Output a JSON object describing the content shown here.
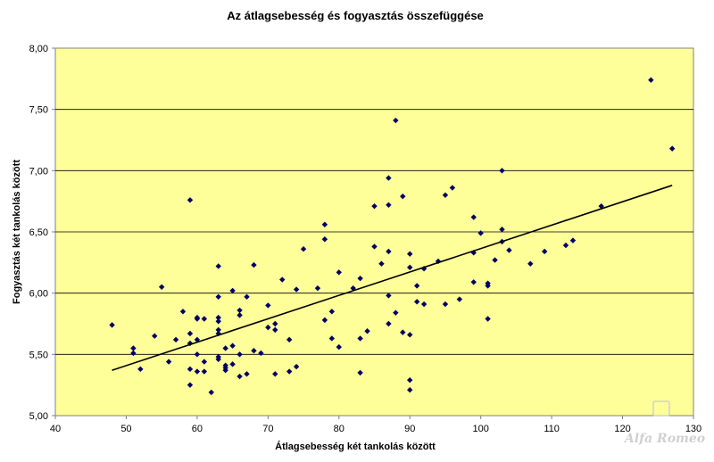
{
  "watermark": "Alfa Romeo",
  "chart_data": {
    "type": "scatter",
    "title": "Az átlagsebesség és fogyasztás összefüggése",
    "xlabel": "Átlagsebesség két tankolás között",
    "ylabel": "Fogyasztás  két tankolás  között",
    "xlim": [
      40,
      130
    ],
    "ylim": [
      5.0,
      8.0
    ],
    "x_ticks": [
      "40",
      "50",
      "60",
      "70",
      "80",
      "90",
      "100",
      "110",
      "120",
      "130"
    ],
    "y_ticks": [
      "5,00",
      "5,50",
      "6,00",
      "6,50",
      "7,00",
      "7,50",
      "8,00"
    ],
    "grid": "horizontal",
    "plot_background": "#ffff99",
    "marker_color": "#000066",
    "trendline": {
      "x": [
        48,
        127
      ],
      "y": [
        5.37,
        6.88
      ]
    },
    "points": [
      [
        48,
        5.74
      ],
      [
        51,
        5.55
      ],
      [
        51,
        5.51
      ],
      [
        52,
        5.38
      ],
      [
        54,
        5.65
      ],
      [
        55,
        6.05
      ],
      [
        56,
        5.44
      ],
      [
        57,
        5.62
      ],
      [
        58,
        5.85
      ],
      [
        59,
        5.59
      ],
      [
        59,
        5.67
      ],
      [
        59,
        5.38
      ],
      [
        59,
        5.25
      ],
      [
        59,
        6.76
      ],
      [
        60,
        5.79
      ],
      [
        60,
        5.8
      ],
      [
        60,
        5.62
      ],
      [
        60,
        5.5
      ],
      [
        60,
        5.36
      ],
      [
        61,
        5.79
      ],
      [
        61,
        5.44
      ],
      [
        61,
        5.36
      ],
      [
        62,
        5.19
      ],
      [
        63,
        6.22
      ],
      [
        63,
        5.97
      ],
      [
        63,
        5.8
      ],
      [
        63,
        5.77
      ],
      [
        63,
        5.7
      ],
      [
        63,
        5.67
      ],
      [
        63,
        5.48
      ],
      [
        63,
        5.46
      ],
      [
        64,
        5.55
      ],
      [
        64,
        5.41
      ],
      [
        64,
        5.39
      ],
      [
        64,
        5.37
      ],
      [
        65,
        6.02
      ],
      [
        65,
        5.57
      ],
      [
        65,
        5.42
      ],
      [
        66,
        5.86
      ],
      [
        66,
        5.82
      ],
      [
        66,
        5.5
      ],
      [
        66,
        5.32
      ],
      [
        67,
        5.97
      ],
      [
        67,
        5.34
      ],
      [
        68,
        6.23
      ],
      [
        68,
        5.53
      ],
      [
        69,
        5.51
      ],
      [
        70,
        5.9
      ],
      [
        70,
        5.72
      ],
      [
        71,
        5.75
      ],
      [
        71,
        5.7
      ],
      [
        71,
        5.34
      ],
      [
        72,
        6.11
      ],
      [
        73,
        5.62
      ],
      [
        73,
        5.36
      ],
      [
        74,
        6.03
      ],
      [
        74,
        5.4
      ],
      [
        75,
        6.36
      ],
      [
        77,
        6.04
      ],
      [
        78,
        6.56
      ],
      [
        78,
        6.44
      ],
      [
        78,
        5.78
      ],
      [
        79,
        5.85
      ],
      [
        79,
        5.63
      ],
      [
        80,
        6.17
      ],
      [
        80,
        5.56
      ],
      [
        82,
        6.04
      ],
      [
        83,
        6.12
      ],
      [
        83,
        5.63
      ],
      [
        83,
        5.35
      ],
      [
        84,
        5.69
      ],
      [
        85,
        6.71
      ],
      [
        85,
        6.38
      ],
      [
        86,
        6.24
      ],
      [
        87,
        6.94
      ],
      [
        87,
        6.72
      ],
      [
        87,
        6.34
      ],
      [
        87,
        5.98
      ],
      [
        87,
        5.75
      ],
      [
        88,
        7.41
      ],
      [
        88,
        5.84
      ],
      [
        89,
        6.79
      ],
      [
        89,
        5.68
      ],
      [
        90,
        6.32
      ],
      [
        90,
        6.21
      ],
      [
        90,
        5.66
      ],
      [
        90,
        5.29
      ],
      [
        90,
        5.21
      ],
      [
        91,
        6.06
      ],
      [
        91,
        5.93
      ],
      [
        92,
        6.2
      ],
      [
        92,
        5.91
      ],
      [
        94,
        6.26
      ],
      [
        95,
        6.8
      ],
      [
        95,
        5.91
      ],
      [
        96,
        6.86
      ],
      [
        97,
        5.95
      ],
      [
        99,
        6.62
      ],
      [
        99,
        6.33
      ],
      [
        99,
        6.09
      ],
      [
        100,
        6.49
      ],
      [
        101,
        6.08
      ],
      [
        101,
        6.06
      ],
      [
        101,
        5.79
      ],
      [
        102,
        6.27
      ],
      [
        103,
        7.0
      ],
      [
        103,
        6.52
      ],
      [
        103,
        6.42
      ],
      [
        104,
        6.35
      ],
      [
        107,
        6.24
      ],
      [
        109,
        6.34
      ],
      [
        112,
        6.39
      ],
      [
        113,
        6.43
      ],
      [
        117,
        6.71
      ],
      [
        124,
        7.74
      ],
      [
        127,
        7.18
      ]
    ]
  }
}
